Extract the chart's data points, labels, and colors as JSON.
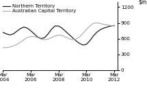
{
  "title": "",
  "ylim": [
    0,
    1300
  ],
  "yticks": [
    0,
    300,
    600,
    900,
    1200
  ],
  "xlim": [
    0,
    33
  ],
  "nt_color": "#1a1a1a",
  "act_color": "#b0b0b0",
  "legend_nt": "Northern Territory",
  "legend_act": "Australian Capital Territory",
  "xtick_labels": [
    "Mar\n2004",
    "Mar\n2006",
    "Mar\n2008",
    "Mar\n2010",
    "Mar\n2012"
  ],
  "xtick_positions": [
    0,
    8,
    16,
    24,
    32
  ],
  "nt_values": [
    720,
    690,
    670,
    690,
    740,
    790,
    820,
    800,
    750,
    690,
    630,
    600,
    620,
    690,
    780,
    840,
    840,
    800,
    740,
    680,
    620,
    560,
    510,
    480,
    490,
    560,
    650,
    720,
    770,
    800,
    820,
    840,
    850
  ],
  "act_values": [
    430,
    430,
    440,
    460,
    490,
    530,
    580,
    620,
    640,
    640,
    620,
    590,
    580,
    590,
    620,
    650,
    670,
    660,
    630,
    600,
    580,
    590,
    630,
    700,
    770,
    840,
    890,
    900,
    890,
    870,
    860,
    850,
    840
  ]
}
